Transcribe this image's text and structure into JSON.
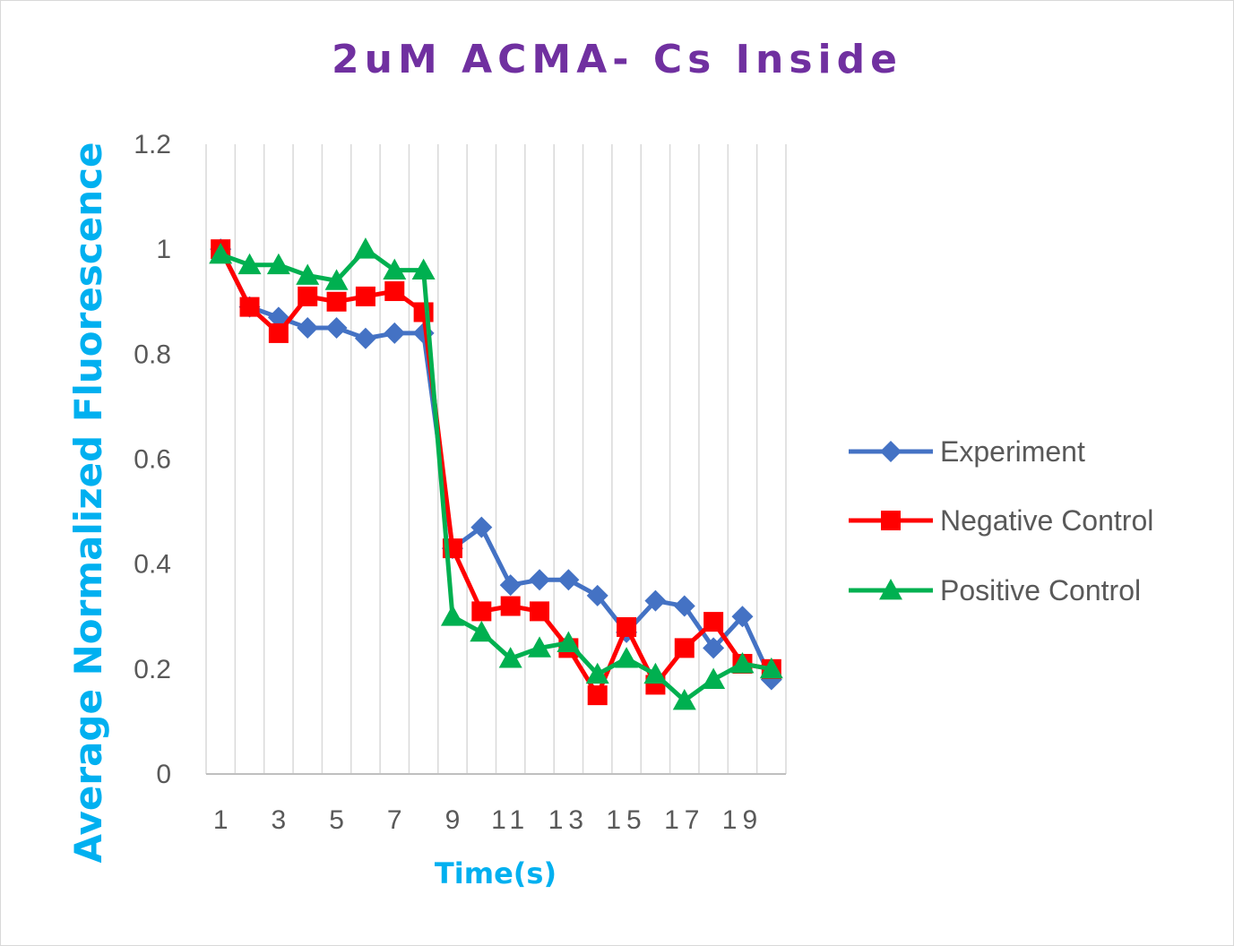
{
  "chart_data": {
    "type": "line",
    "title": "2uM ACMA- Cs Inside",
    "xlabel": "Time(s)",
    "ylabel": "Average Normalized Fluorescence",
    "categories": [
      "1",
      "2",
      "3",
      "4",
      "5",
      "6",
      "7",
      "8",
      "9",
      "10",
      "11",
      "12",
      "13",
      "14",
      "15",
      "16",
      "17",
      "18",
      "19",
      "20"
    ],
    "x_tick_labels": [
      "1",
      "",
      "3",
      "",
      "5",
      "",
      "7",
      "",
      "9",
      "",
      "11",
      "",
      "13",
      "",
      "15",
      "",
      "17",
      "",
      "19",
      ""
    ],
    "ylim": [
      0,
      1.2
    ],
    "y_ticks": [
      "0",
      "0.2",
      "0.4",
      "0.6",
      "0.8",
      "1",
      "1.2"
    ],
    "grid": "vertical",
    "legend_position": "right",
    "series": [
      {
        "name": "Experiment",
        "color": "#4472c4",
        "marker": "diamond",
        "values": [
          1.0,
          0.89,
          0.87,
          0.85,
          0.85,
          0.83,
          0.84,
          0.84,
          0.43,
          0.47,
          0.36,
          0.37,
          0.37,
          0.34,
          0.27,
          0.33,
          0.32,
          0.24,
          0.3,
          0.18
        ]
      },
      {
        "name": "Negative Control",
        "color": "#ff0000",
        "marker": "square",
        "values": [
          1.0,
          0.89,
          0.84,
          0.91,
          0.9,
          0.91,
          0.92,
          0.88,
          0.43,
          0.31,
          0.32,
          0.31,
          0.24,
          0.15,
          0.28,
          0.17,
          0.24,
          0.29,
          0.21,
          0.2
        ]
      },
      {
        "name": "Positive Control",
        "color": "#00b050",
        "marker": "triangle",
        "values": [
          0.99,
          0.97,
          0.97,
          0.95,
          0.94,
          1.0,
          0.96,
          0.96,
          0.3,
          0.27,
          0.22,
          0.24,
          0.25,
          0.19,
          0.22,
          0.19,
          0.14,
          0.18,
          0.21,
          0.2
        ]
      }
    ]
  }
}
